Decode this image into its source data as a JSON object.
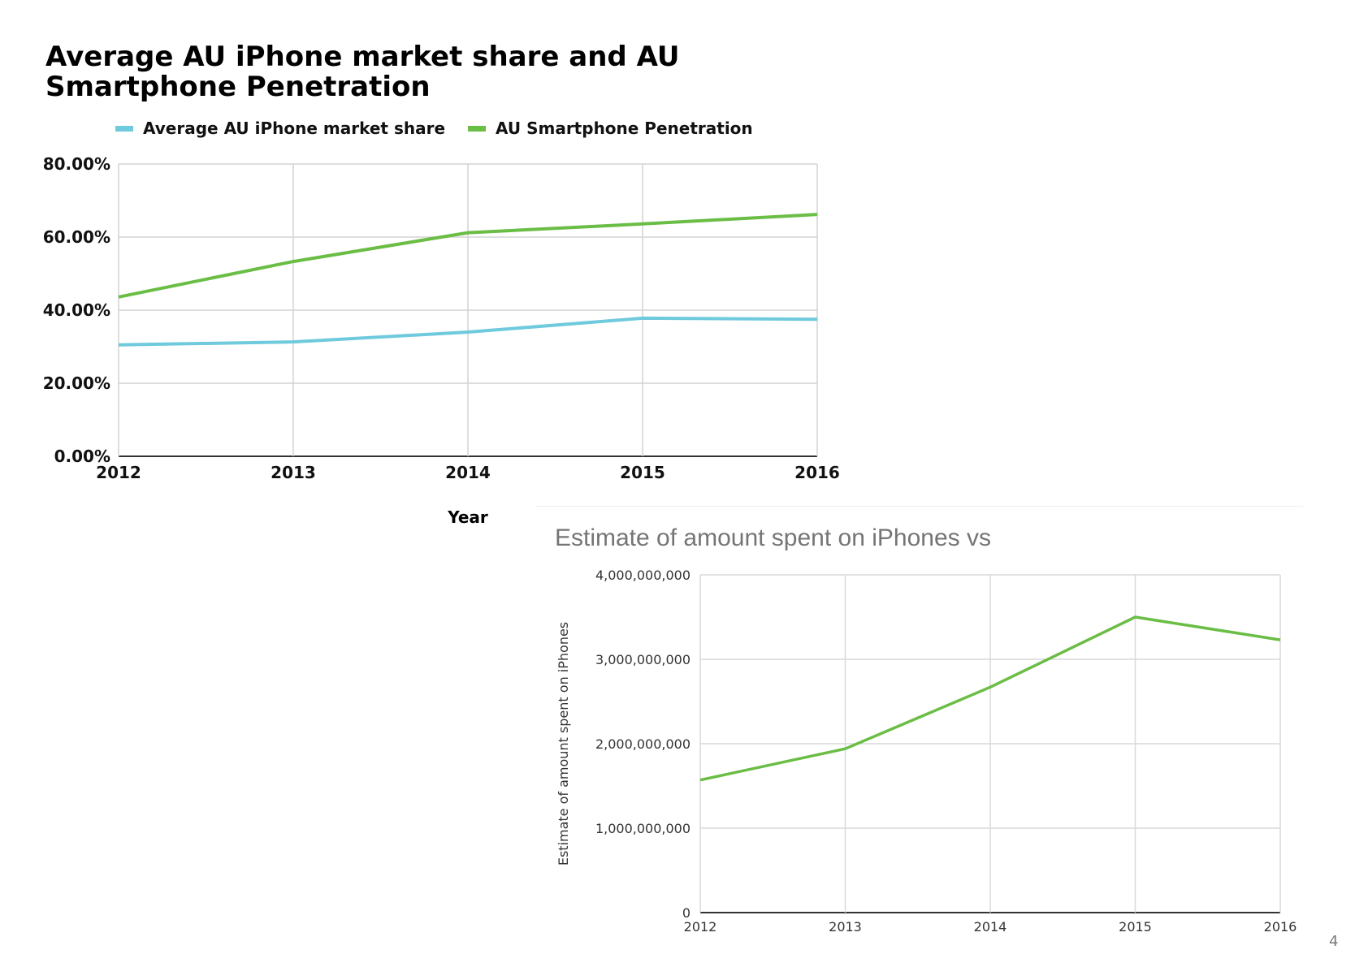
{
  "slide": {
    "page_number": "4"
  },
  "chart_data": [
    {
      "type": "line",
      "title": "Average AU iPhone market share and AU Smartphone Penetration",
      "xlabel": "Year",
      "ylabel": "",
      "x": [
        "2012",
        "2013",
        "2014",
        "2015",
        "2016"
      ],
      "yticks": [
        "0.00%",
        "20.00%",
        "40.00%",
        "60.00%",
        "80.00%"
      ],
      "ylim": [
        0,
        80
      ],
      "grid": true,
      "legend": "top",
      "series": [
        {
          "name": "Average AU iPhone market share",
          "color": "#6ecadc",
          "values": [
            30.5,
            31.3,
            34.0,
            37.8,
            37.5
          ]
        },
        {
          "name": "AU Smartphone Penetration",
          "color": "#6abd45",
          "values": [
            43.6,
            53.3,
            61.2,
            63.6,
            66.2
          ]
        }
      ]
    },
    {
      "type": "line",
      "title": "Estimate of amount spent on iPhones vs",
      "xlabel": "",
      "ylabel": "Estimate of amount spent on iPhones",
      "x": [
        "2012",
        "2013",
        "2014",
        "2015",
        "2016"
      ],
      "yticks": [
        "0",
        "1,000,000,000",
        "2,000,000,000",
        "3,000,000,000",
        "4,000,000,000"
      ],
      "ylim": [
        0,
        4000000000
      ],
      "grid": true,
      "series": [
        {
          "color": "#6abd45",
          "values": [
            1570000000,
            1940000000,
            2670000000,
            3500000000,
            3230000000
          ]
        }
      ]
    }
  ]
}
